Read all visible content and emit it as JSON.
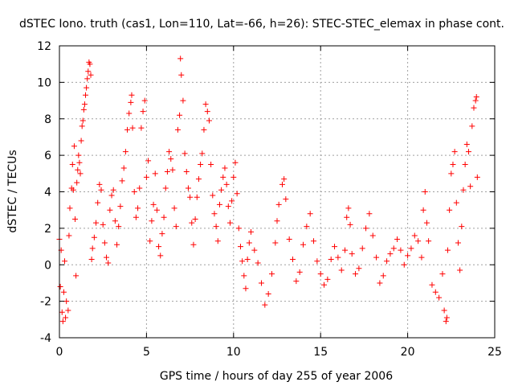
{
  "chart_data": {
    "type": "scatter",
    "title": "dSTEC Iono. truth (cas1, Lon=110, Lat=-66, h=26): STEC-STEC_elemax in phase cont.",
    "xlabel": "GPS time / hours of day 255 of year 2006",
    "ylabel": "dSTEC  / TECUs",
    "xlim": [
      0,
      25
    ],
    "ylim": [
      -4,
      12
    ],
    "xticks": [
      0,
      5,
      10,
      15,
      20,
      25
    ],
    "yticks": [
      -4,
      -2,
      0,
      2,
      4,
      6,
      8,
      10,
      12
    ],
    "grid": true,
    "marker": "+",
    "colors": {
      "series": "#ff0000",
      "grid": "#a0a0a0",
      "frame": "#000000"
    },
    "series": [
      {
        "values": [
          [
            0.0,
            1.4
          ],
          [
            0.05,
            -1.2
          ],
          [
            0.1,
            0.8
          ],
          [
            0.15,
            -2.6
          ],
          [
            0.2,
            -3.1
          ],
          [
            0.25,
            -1.5
          ],
          [
            0.3,
            0.2
          ],
          [
            0.35,
            -2.9
          ],
          [
            0.4,
            -2.0
          ],
          [
            0.5,
            -2.5
          ],
          [
            0.55,
            1.6
          ],
          [
            0.6,
            3.1
          ],
          [
            0.7,
            4.2
          ],
          [
            0.75,
            5.5
          ],
          [
            0.8,
            4.1
          ],
          [
            0.85,
            6.5
          ],
          [
            0.9,
            2.5
          ],
          [
            0.95,
            -0.6
          ],
          [
            1.0,
            4.5
          ],
          [
            1.05,
            5.2
          ],
          [
            1.1,
            6.0
          ],
          [
            1.15,
            5.6
          ],
          [
            1.2,
            5.0
          ],
          [
            1.25,
            6.8
          ],
          [
            1.3,
            7.6
          ],
          [
            1.35,
            7.9
          ],
          [
            1.4,
            8.5
          ],
          [
            1.45,
            8.8
          ],
          [
            1.5,
            9.3
          ],
          [
            1.55,
            9.7
          ],
          [
            1.6,
            10.2
          ],
          [
            1.65,
            10.6
          ],
          [
            1.7,
            11.1
          ],
          [
            1.75,
            11.0
          ],
          [
            1.8,
            10.4
          ],
          [
            1.85,
            0.3
          ],
          [
            1.9,
            0.9
          ],
          [
            2.0,
            1.5
          ],
          [
            2.1,
            2.3
          ],
          [
            2.2,
            3.4
          ],
          [
            2.3,
            4.4
          ],
          [
            2.4,
            4.1
          ],
          [
            2.5,
            2.2
          ],
          [
            2.6,
            1.2
          ],
          [
            2.7,
            0.4
          ],
          [
            2.8,
            0.1
          ],
          [
            2.9,
            3.0
          ],
          [
            3.0,
            3.8
          ],
          [
            3.1,
            4.1
          ],
          [
            3.2,
            2.4
          ],
          [
            3.3,
            1.1
          ],
          [
            3.4,
            2.1
          ],
          [
            3.5,
            3.2
          ],
          [
            3.6,
            4.6
          ],
          [
            3.7,
            5.3
          ],
          [
            3.8,
            6.2
          ],
          [
            3.9,
            7.4
          ],
          [
            4.0,
            8.3
          ],
          [
            4.1,
            8.9
          ],
          [
            4.15,
            9.3
          ],
          [
            4.2,
            7.5
          ],
          [
            4.3,
            4.0
          ],
          [
            4.4,
            2.6
          ],
          [
            4.5,
            3.1
          ],
          [
            4.6,
            4.2
          ],
          [
            4.7,
            7.5
          ],
          [
            4.8,
            8.4
          ],
          [
            4.9,
            9.0
          ],
          [
            5.0,
            4.8
          ],
          [
            5.1,
            5.7
          ],
          [
            5.2,
            1.3
          ],
          [
            5.3,
            2.4
          ],
          [
            5.4,
            3.3
          ],
          [
            5.5,
            5.0
          ],
          [
            5.6,
            3.0
          ],
          [
            5.7,
            1.0
          ],
          [
            5.8,
            0.5
          ],
          [
            5.9,
            1.7
          ],
          [
            6.0,
            2.6
          ],
          [
            6.1,
            4.2
          ],
          [
            6.2,
            5.1
          ],
          [
            6.3,
            6.2
          ],
          [
            6.4,
            5.8
          ],
          [
            6.5,
            5.2
          ],
          [
            6.6,
            3.1
          ],
          [
            6.7,
            2.1
          ],
          [
            6.8,
            7.4
          ],
          [
            6.9,
            8.2
          ],
          [
            6.95,
            11.3
          ],
          [
            7.0,
            10.4
          ],
          [
            7.1,
            9.0
          ],
          [
            7.2,
            6.1
          ],
          [
            7.3,
            5.1
          ],
          [
            7.4,
            4.2
          ],
          [
            7.5,
            3.7
          ],
          [
            7.6,
            2.3
          ],
          [
            7.7,
            1.1
          ],
          [
            7.8,
            2.5
          ],
          [
            7.9,
            3.7
          ],
          [
            8.0,
            4.7
          ],
          [
            8.1,
            5.5
          ],
          [
            8.2,
            6.1
          ],
          [
            8.3,
            7.4
          ],
          [
            8.4,
            8.8
          ],
          [
            8.5,
            8.4
          ],
          [
            8.6,
            7.9
          ],
          [
            8.7,
            5.5
          ],
          [
            8.8,
            3.8
          ],
          [
            8.9,
            2.8
          ],
          [
            9.0,
            2.1
          ],
          [
            9.1,
            1.3
          ],
          [
            9.2,
            3.3
          ],
          [
            9.3,
            4.1
          ],
          [
            9.4,
            4.8
          ],
          [
            9.5,
            5.3
          ],
          [
            9.6,
            4.4
          ],
          [
            9.7,
            3.2
          ],
          [
            9.8,
            2.3
          ],
          [
            9.9,
            3.5
          ],
          [
            10.0,
            4.8
          ],
          [
            10.1,
            5.6
          ],
          [
            10.2,
            3.9
          ],
          [
            10.3,
            2.0
          ],
          [
            10.4,
            1.0
          ],
          [
            10.5,
            0.2
          ],
          [
            10.6,
            -0.6
          ],
          [
            10.7,
            -1.3
          ],
          [
            10.8,
            0.3
          ],
          [
            10.9,
            1.2
          ],
          [
            11.0,
            1.8
          ],
          [
            11.2,
            0.8
          ],
          [
            11.4,
            0.1
          ],
          [
            11.6,
            -1.0
          ],
          [
            11.8,
            -2.2
          ],
          [
            12.0,
            -1.6
          ],
          [
            12.2,
            -0.5
          ],
          [
            12.4,
            1.2
          ],
          [
            12.5,
            2.4
          ],
          [
            12.6,
            3.3
          ],
          [
            12.8,
            4.4
          ],
          [
            12.9,
            4.7
          ],
          [
            13.0,
            3.6
          ],
          [
            13.2,
            1.4
          ],
          [
            13.4,
            0.3
          ],
          [
            13.6,
            -0.9
          ],
          [
            13.8,
            -0.4
          ],
          [
            14.0,
            1.1
          ],
          [
            14.2,
            2.1
          ],
          [
            14.4,
            2.8
          ],
          [
            14.6,
            1.3
          ],
          [
            14.8,
            0.2
          ],
          [
            15.0,
            -0.5
          ],
          [
            15.2,
            -1.1
          ],
          [
            15.4,
            -0.8
          ],
          [
            15.6,
            0.3
          ],
          [
            15.8,
            1.0
          ],
          [
            16.0,
            0.4
          ],
          [
            16.2,
            -0.3
          ],
          [
            16.4,
            0.8
          ],
          [
            16.5,
            2.6
          ],
          [
            16.6,
            3.1
          ],
          [
            16.7,
            2.2
          ],
          [
            16.8,
            0.6
          ],
          [
            17.0,
            -0.5
          ],
          [
            17.2,
            -0.2
          ],
          [
            17.4,
            0.9
          ],
          [
            17.6,
            2.0
          ],
          [
            17.8,
            2.8
          ],
          [
            18.0,
            1.6
          ],
          [
            18.2,
            0.4
          ],
          [
            18.4,
            -1.0
          ],
          [
            18.6,
            -0.6
          ],
          [
            18.8,
            0.2
          ],
          [
            19.0,
            0.6
          ],
          [
            19.2,
            0.9
          ],
          [
            19.4,
            1.4
          ],
          [
            19.6,
            0.8
          ],
          [
            19.8,
            0.0
          ],
          [
            20.0,
            0.5
          ],
          [
            20.2,
            0.9
          ],
          [
            20.4,
            1.6
          ],
          [
            20.6,
            1.3
          ],
          [
            20.8,
            0.4
          ],
          [
            20.9,
            3.0
          ],
          [
            21.0,
            4.0
          ],
          [
            21.1,
            2.3
          ],
          [
            21.2,
            1.3
          ],
          [
            21.4,
            -1.1
          ],
          [
            21.6,
            -1.5
          ],
          [
            21.8,
            -1.8
          ],
          [
            22.0,
            -0.5
          ],
          [
            22.1,
            -2.5
          ],
          [
            22.2,
            -3.1
          ],
          [
            22.25,
            -2.9
          ],
          [
            22.3,
            0.8
          ],
          [
            22.4,
            3.0
          ],
          [
            22.5,
            5.0
          ],
          [
            22.6,
            5.5
          ],
          [
            22.7,
            6.2
          ],
          [
            22.8,
            3.4
          ],
          [
            22.9,
            1.2
          ],
          [
            23.0,
            -0.3
          ],
          [
            23.1,
            2.1
          ],
          [
            23.2,
            4.1
          ],
          [
            23.3,
            5.5
          ],
          [
            23.4,
            6.6
          ],
          [
            23.5,
            6.2
          ],
          [
            23.6,
            4.3
          ],
          [
            23.7,
            7.6
          ],
          [
            23.8,
            8.6
          ],
          [
            23.9,
            9.0
          ],
          [
            23.95,
            9.2
          ],
          [
            24.0,
            4.8
          ]
        ]
      }
    ]
  }
}
